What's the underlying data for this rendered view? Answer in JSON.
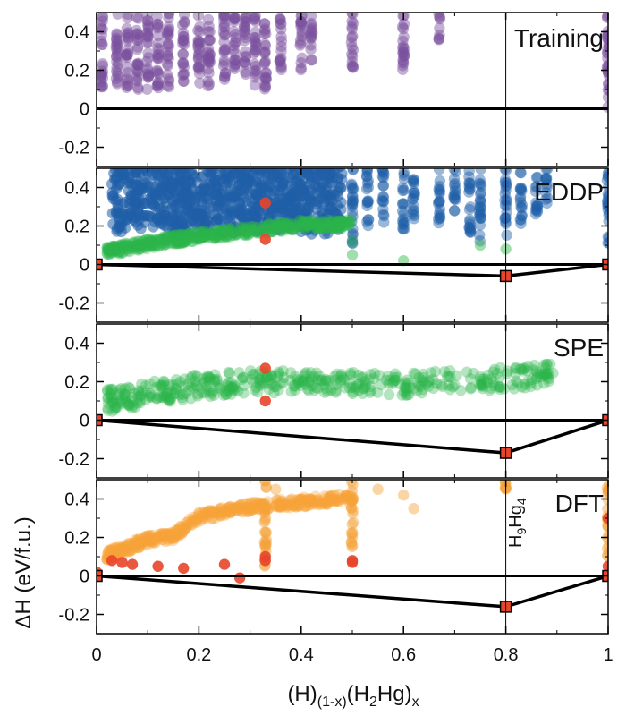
{
  "chart_data": {
    "type": "scatter",
    "xlabel": "(H)(1-x)(H2Hg)x",
    "xlabel_parts": {
      "a": "(H)",
      "a_sub": "(1-x)",
      "b": "(H",
      "b_sub": "2",
      "c": "Hg)",
      "c_sub": "x"
    },
    "ylabel": "ΔH (eV/f.u.)",
    "xlim": [
      0,
      1
    ],
    "ylim": [
      -0.3,
      0.5
    ],
    "x_ticks": [
      "0",
      "0.2",
      "0.4",
      "0.6",
      "0.8",
      "1"
    ],
    "x_tick_values": [
      0,
      0.2,
      0.4,
      0.6,
      0.8,
      1
    ],
    "y_ticks": [
      "-0.2",
      "0",
      "0.2",
      "0.4"
    ],
    "y_tick_values": [
      -0.2,
      0,
      0.2,
      0.4
    ],
    "vertical_line_x": 0.8,
    "annotation": {
      "base": "H",
      "sub1": "9",
      "mid": "Hg",
      "sub2": "4",
      "full": "H9Hg4",
      "x": 0.8
    },
    "colors": {
      "training": "#7b4f9e",
      "eddp": "#1f5fa8",
      "spe": "#2cb54a",
      "dft": "#f5a23a",
      "hull_point": "#e8452a"
    },
    "panels": [
      {
        "name": "Training",
        "hull": [
          [
            0,
            0
          ],
          [
            1,
            0
          ]
        ],
        "hull_points": [],
        "series": [
          {
            "name": "training structures",
            "color": "#7b4f9e",
            "columns": [
              [
                0.01,
                0.1,
                0.5
              ],
              [
                0.04,
                0.1,
                0.5
              ],
              [
                0.06,
                0.1,
                0.5
              ],
              [
                0.08,
                0.1,
                0.5
              ],
              [
                0.1,
                0.1,
                0.5
              ],
              [
                0.12,
                0.1,
                0.5
              ],
              [
                0.14,
                0.1,
                0.5
              ],
              [
                0.17,
                0.12,
                0.5
              ],
              [
                0.2,
                0.12,
                0.5
              ],
              [
                0.22,
                0.1,
                0.5
              ],
              [
                0.25,
                0.1,
                0.5
              ],
              [
                0.27,
                0.15,
                0.5
              ],
              [
                0.29,
                0.15,
                0.5
              ],
              [
                0.31,
                0.12,
                0.5
              ],
              [
                0.33,
                0.1,
                0.5
              ],
              [
                0.36,
                0.2,
                0.5
              ],
              [
                0.4,
                0.2,
                0.5
              ],
              [
                0.42,
                0.25,
                0.5
              ],
              [
                0.5,
                0.2,
                0.5
              ],
              [
                0.6,
                0.15,
                0.5
              ],
              [
                0.67,
                0.35,
                0.5
              ],
              [
                1.0,
                0.0,
                0.5
              ]
            ]
          }
        ]
      },
      {
        "name": "EDDP",
        "hull": [
          [
            0,
            0
          ],
          [
            0.8,
            -0.06
          ],
          [
            1,
            0
          ]
        ],
        "hull_points": [
          [
            0,
            0
          ],
          [
            0.8,
            -0.06
          ],
          [
            1,
            0
          ]
        ],
        "series": [
          {
            "name": "EDDP all",
            "color": "#1f5fa8",
            "region": [
              [
                0.03,
                0.48,
                0.15,
                0.5
              ]
            ],
            "columns": [
              [
                0.5,
                0.1,
                0.5
              ],
              [
                0.53,
                0.2,
                0.5
              ],
              [
                0.56,
                0.2,
                0.5
              ],
              [
                0.6,
                0.18,
                0.5
              ],
              [
                0.62,
                0.22,
                0.5
              ],
              [
                0.67,
                0.2,
                0.5
              ],
              [
                0.7,
                0.25,
                0.5
              ],
              [
                0.73,
                0.15,
                0.5
              ],
              [
                0.75,
                0.12,
                0.5
              ],
              [
                0.8,
                0.15,
                0.5
              ],
              [
                0.83,
                0.2,
                0.5
              ],
              [
                0.86,
                0.25,
                0.5
              ],
              [
                0.88,
                0.3,
                0.5
              ],
              [
                1.0,
                0.1,
                0.5
              ]
            ]
          },
          {
            "name": "EDDP low-energy",
            "color": "#2cb54a",
            "band": [
              [
                0.02,
                0.06
              ],
              [
                0.1,
                0.1
              ],
              [
                0.2,
                0.14
              ],
              [
                0.3,
                0.17
              ],
              [
                0.4,
                0.2
              ],
              [
                0.5,
                0.2
              ]
            ],
            "extra": [
              [
                0.5,
                0.12
              ],
              [
                0.5,
                0.05
              ],
              [
                0.6,
                0.02
              ],
              [
                0.75,
                0.1
              ],
              [
                0.8,
                0.08
              ]
            ]
          },
          {
            "name": "EDDP DFT hull",
            "color": "#e8452a",
            "points": [
              [
                0.33,
                0.13
              ],
              [
                0.33,
                0.32
              ]
            ]
          }
        ]
      },
      {
        "name": "SPE",
        "hull": [
          [
            0,
            0
          ],
          [
            0.8,
            -0.17
          ],
          [
            1,
            0
          ]
        ],
        "hull_points": [
          [
            0,
            0
          ],
          [
            0.8,
            -0.17
          ],
          [
            1,
            0
          ]
        ],
        "series": [
          {
            "name": "SPE structures",
            "color": "#2cb54a",
            "band": [
              [
                0.02,
                0.08
              ],
              [
                0.1,
                0.12
              ],
              [
                0.2,
                0.16
              ],
              [
                0.3,
                0.18
              ],
              [
                0.4,
                0.18
              ],
              [
                0.5,
                0.17
              ],
              [
                0.6,
                0.17
              ],
              [
                0.7,
                0.18
              ],
              [
                0.8,
                0.2
              ],
              [
                0.9,
                0.22
              ]
            ],
            "scatter_spread": 0.12
          },
          {
            "name": "SPE DFT hull",
            "color": "#e8452a",
            "points": [
              [
                0.33,
                0.27
              ],
              [
                0.33,
                0.1
              ]
            ]
          }
        ]
      },
      {
        "name": "DFT",
        "hull": [
          [
            0,
            0
          ],
          [
            0.8,
            -0.16
          ],
          [
            1,
            0
          ]
        ],
        "hull_points": [
          [
            0,
            0
          ],
          [
            0.8,
            -0.16
          ],
          [
            1,
            0
          ]
        ],
        "series": [
          {
            "name": "DFT structures",
            "color": "#f5a23a",
            "band": [
              [
                0.02,
                0.1
              ],
              [
                0.1,
                0.18
              ],
              [
                0.15,
                0.2
              ],
              [
                0.2,
                0.3
              ],
              [
                0.3,
                0.35
              ],
              [
                0.5,
                0.4
              ]
            ],
            "columns": [
              [
                0.33,
                0.05,
                0.5
              ],
              [
                0.5,
                0.15,
                0.5
              ],
              [
                0.8,
                0.45,
                0.5
              ],
              [
                1.0,
                0.1,
                0.5
              ]
            ],
            "extra": [
              [
                0.35,
                0.45
              ],
              [
                0.5,
                0.2
              ],
              [
                0.55,
                0.45
              ],
              [
                0.6,
                0.42
              ],
              [
                0.62,
                0.35
              ]
            ]
          },
          {
            "name": "DFT near-hull",
            "color": "#e8452a",
            "points": [
              [
                0.0,
                0.02
              ],
              [
                0.03,
                0.08
              ],
              [
                0.05,
                0.07
              ],
              [
                0.07,
                0.06
              ],
              [
                0.12,
                0.05
              ],
              [
                0.17,
                0.04
              ],
              [
                0.25,
                0.06
              ],
              [
                0.28,
                -0.01
              ],
              [
                0.33,
                0.1
              ],
              [
                0.33,
                0.08
              ],
              [
                0.5,
                0.08
              ],
              [
                0.5,
                0.07
              ],
              [
                1.0,
                0.05
              ],
              [
                1.0,
                0.3
              ]
            ]
          }
        ]
      }
    ]
  }
}
